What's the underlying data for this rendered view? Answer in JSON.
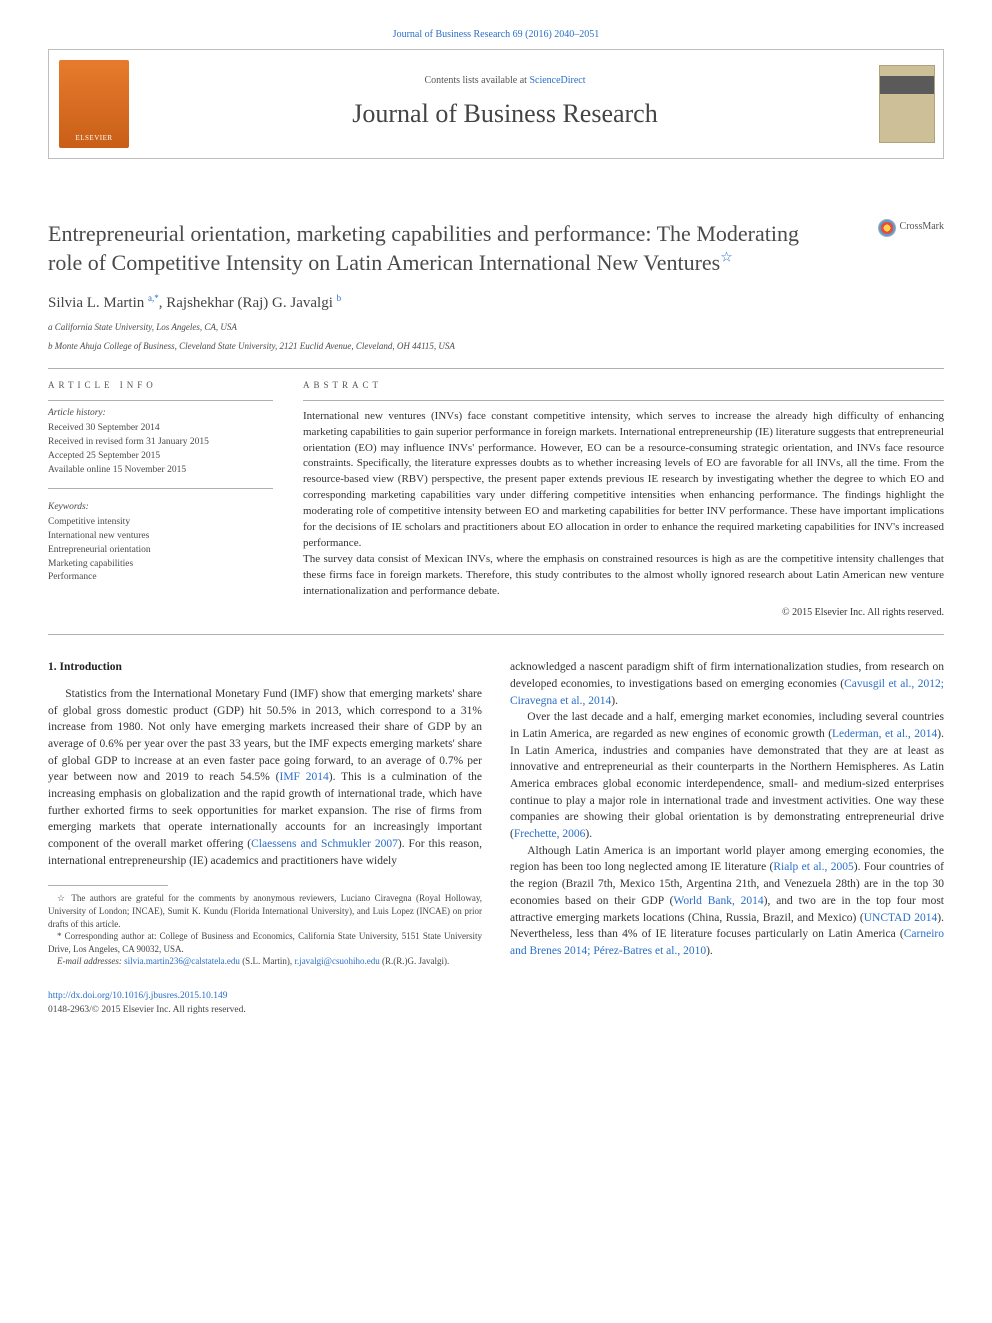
{
  "colors": {
    "link": "#2a6ec9",
    "text": "#333333",
    "muted": "#4a4a4a",
    "rule": "#b0b0b0",
    "elsevier": "#e77b2d"
  },
  "top": {
    "journal_ref": "Journal of Business Research 69 (2016) 2040–2051"
  },
  "header": {
    "sd_prefix": "Contents lists available at ",
    "sd_link": "ScienceDirect",
    "journal_title": "Journal of Business Research",
    "publisher_logo": "ELSEVIER"
  },
  "crossmark": {
    "label": "CrossMark"
  },
  "article": {
    "title": "Entrepreneurial orientation, marketing capabilities and performance: The Moderating role of Competitive Intensity on Latin American International New Ventures",
    "star": "☆",
    "authors_html": "Silvia L. Martin ",
    "author1_sup": "a,*",
    "author_sep": ", Rajshekhar (Raj) G. Javalgi ",
    "author2_sup": "b",
    "affil_a": "a  California State University, Los Angeles, CA, USA",
    "affil_b": "b  Monte Ahuja College of Business, Cleveland State University, 2121 Euclid Avenue, Cleveland, OH 44115, USA"
  },
  "info": {
    "section_label": "ARTICLE INFO",
    "history_label": "Article history:",
    "history": [
      "Received 30 September 2014",
      "Received in revised form 31 January 2015",
      "Accepted 25 September 2015",
      "Available online 15 November 2015"
    ],
    "kw_label": "Keywords:",
    "keywords": [
      "Competitive intensity",
      "International new ventures",
      "Entrepreneurial orientation",
      "Marketing capabilities",
      "Performance"
    ]
  },
  "abstract": {
    "section_label": "ABSTRACT",
    "p1": "International new ventures (INVs) face constant competitive intensity, which serves to increase the already high difficulty of enhancing marketing capabilities to gain superior performance in foreign markets. International entrepreneurship (IE) literature suggests that entrepreneurial orientation (EO) may influence INVs' performance. However, EO can be a resource-consuming strategic orientation, and INVs face resource constraints. Specifically, the literature expresses doubts as to whether increasing levels of EO are favorable for all INVs, all the time. From the resource-based view (RBV) perspective, the present paper extends previous IE research by investigating whether the degree to which EO and corresponding marketing capabilities vary under differing competitive intensities when enhancing performance. The findings highlight the moderating role of competitive intensity between EO and marketing capabilities for better INV performance. These have important implications for the decisions of IE scholars and practitioners about EO allocation in order to enhance the required marketing capabilities for INV's increased performance.",
    "p2": "The survey data consist of Mexican INVs, where the emphasis on constrained resources is high as are the competitive intensity challenges that these firms face in foreign markets. Therefore, this study contributes to the almost wholly ignored research about Latin American new venture internationalization and performance debate.",
    "copyright": "© 2015 Elsevier Inc. All rights reserved."
  },
  "body": {
    "section_heading": "1. Introduction",
    "left_p1a": "Statistics from the International Monetary Fund (IMF) show that emerging markets' share of global gross domestic product (GDP) hit 50.5% in 2013, which correspond to a 31% increase from 1980. Not only have emerging markets increased their share of GDP by an average of 0.6% per year over the past 33 years, but the IMF expects emerging markets' share of global GDP to increase at an even faster pace going forward, to an average of 0.7% per year between now and 2019 to reach 54.5% (",
    "left_ref1": "IMF 2014",
    "left_p1b": "). This is a culmination of the increasing emphasis on globalization and the rapid growth of international trade, which have further exhorted firms to seek opportunities for market expansion. The rise of firms from emerging markets that operate internationally accounts for an increasingly important component of the overall market offering (",
    "left_ref2": "Claessens and Schmukler 2007",
    "left_p1c": "). For this reason, international entrepreneurship (IE) academics and practitioners have widely",
    "right_p1a": "acknowledged a nascent paradigm shift of firm internationalization studies, from research on developed economies, to investigations based on emerging economies (",
    "right_ref1": "Cavusgil et al., 2012; Ciravegna et al., 2014",
    "right_p1b": ").",
    "right_p2a": "Over the last decade and a half, emerging market economies, including several countries in Latin America, are regarded as new engines of economic growth (",
    "right_ref2": "Lederman, et al., 2014",
    "right_p2b": "). In Latin America, industries and companies have demonstrated that they are at least as innovative and entrepreneurial as their counterparts in the Northern Hemispheres. As Latin America embraces global economic interdependence, small- and medium-sized enterprises continue to play a major role in international trade and investment activities. One way these companies are showing their global orientation is by demonstrating entrepreneurial drive (",
    "right_ref3": "Frechette, 2006",
    "right_p2c": ").",
    "right_p3a": "Although Latin America is an important world player among emerging economies, the region has been too long neglected among IE literature (",
    "right_ref4": "Rialp et al., 2005",
    "right_p3b": "). Four countries of the region (Brazil 7th, Mexico 15th, Argentina 21th, and Venezuela 28th) are in the top 30 economies based on their GDP (",
    "right_ref5": "World Bank, 2014",
    "right_p3c": "), and two are in the top four most attractive emerging markets locations (China, Russia, Brazil, and Mexico) (",
    "right_ref6": "UNCTAD 2014",
    "right_p3d": "). Nevertheless, less than 4% of IE literature focuses particularly on Latin America (",
    "right_ref7": "Carneiro and Brenes 2014; Pérez-Batres et al., 2010",
    "right_p3e": ")."
  },
  "footnotes": {
    "star": "☆  The authors are grateful for the comments by anonymous reviewers, Luciano Ciravegna (Royal Holloway, University of London; INCAE), Sumit K. Kundu (Florida International University), and Luis Lopez (INCAE) on prior drafts of this article.",
    "corr": "*  Corresponding author at: College of Business and Economics, California State University, 5151 State University Drive, Los Angeles, CA 90032, USA.",
    "email_label": "E-mail addresses: ",
    "email1": "silvia.martin236@calstatela.edu",
    "email1_who": " (S.L. Martin), ",
    "email2": "r.javalgi@csuohiho.edu",
    "email2_who": " (R.(R.)G. Javalgi)."
  },
  "doi": {
    "url": "http://dx.doi.org/10.1016/j.jbusres.2015.10.149",
    "rights": "0148-2963/© 2015 Elsevier Inc. All rights reserved."
  }
}
